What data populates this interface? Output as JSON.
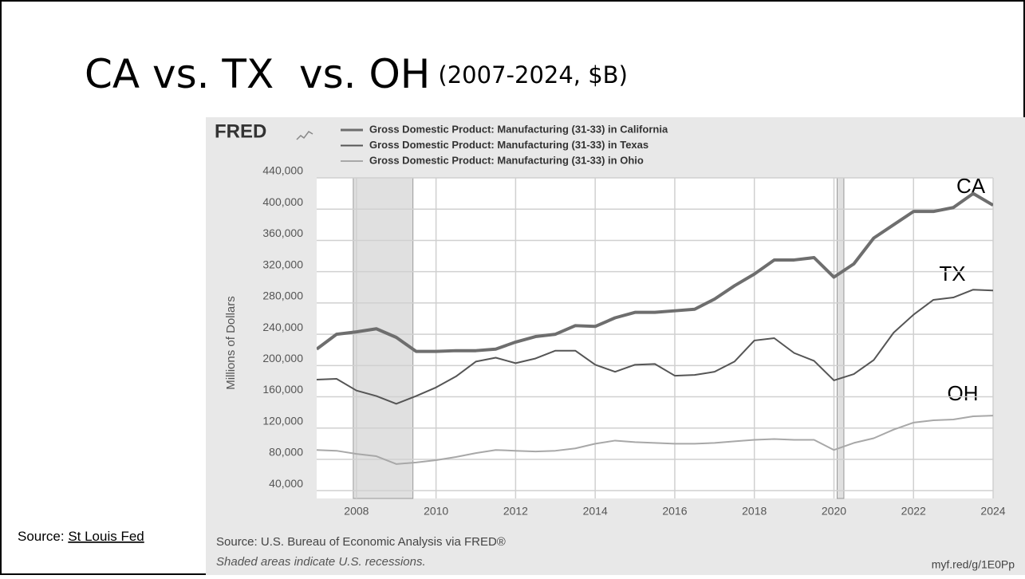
{
  "slide": {
    "title": "CA vs. TX  vs. OH",
    "title_note": "(2007-2024, $B)",
    "source_prefix": "Source: ",
    "source_link": "St Louis Fed"
  },
  "chart_data": {
    "type": "line",
    "logo": "FRED",
    "y_label": "Millions of Dollars",
    "annotations": [
      "CA",
      "TX",
      "OH"
    ],
    "source": "Source: U.S. Bureau of Economic Analysis via FRED®",
    "note": "Shaded areas indicate U.S. recessions.",
    "link": "myf.red/g/1E0Pp",
    "x": [
      2007,
      2007.5,
      2008,
      2008.5,
      2009,
      2009.5,
      2010,
      2010.5,
      2011,
      2011.5,
      2012,
      2012.5,
      2013,
      2013.5,
      2014,
      2014.5,
      2015,
      2015.5,
      2016,
      2016.5,
      2017,
      2017.5,
      2018,
      2018.5,
      2019,
      2019.5,
      2020,
      2020.5,
      2021,
      2021.5,
      2022,
      2022.5,
      2023,
      2023.5,
      2024
    ],
    "series": [
      {
        "name": "Gross Domestic Product: Manufacturing (31-33) in California",
        "color": "#6e6e6e",
        "width": 4,
        "values": [
          221000,
          240000,
          243000,
          247000,
          236000,
          218000,
          218000,
          219000,
          219000,
          221000,
          230000,
          237000,
          240000,
          251000,
          250000,
          261000,
          268000,
          268000,
          270000,
          272000,
          285000,
          302000,
          317000,
          335000,
          335000,
          338000,
          313000,
          330000,
          363000,
          380000,
          397000,
          397000,
          402000,
          420000,
          405000
        ]
      },
      {
        "name": "Gross Domestic Product: Manufacturing (31-33) in Texas",
        "color": "#555555",
        "width": 2,
        "values": [
          182000,
          183000,
          168000,
          161000,
          151000,
          161000,
          172000,
          186000,
          205000,
          210000,
          203000,
          209000,
          219000,
          219000,
          201000,
          192000,
          201000,
          202000,
          187000,
          188000,
          192000,
          205000,
          232000,
          235000,
          216000,
          206000,
          181000,
          189000,
          207000,
          242000,
          265000,
          284000,
          287000,
          297000,
          296000
        ]
      },
      {
        "name": "Gross Domestic Product: Manufacturing (31-33) in Ohio",
        "color": "#a8a8a8",
        "width": 2,
        "values": [
          92000,
          91000,
          87000,
          84000,
          74000,
          76000,
          79000,
          83000,
          88000,
          92000,
          91000,
          90000,
          91000,
          94000,
          100000,
          104000,
          102000,
          101000,
          100000,
          100000,
          101000,
          103000,
          105000,
          106000,
          105000,
          105000,
          92000,
          101000,
          107000,
          118000,
          127000,
          130000,
          131000,
          135000,
          136000
        ]
      }
    ],
    "recessions": [
      [
        2007.92,
        2009.42
      ],
      [
        2020.08,
        2020.25
      ]
    ],
    "xlim": [
      2007,
      2024
    ],
    "xticks": [
      2008,
      2010,
      2012,
      2014,
      2016,
      2018,
      2020,
      2022,
      2024
    ],
    "ylim": [
      30000,
      440000
    ],
    "yticks": [
      {
        "value": 40000,
        "label": "40,000"
      },
      {
        "value": 80000,
        "label": "80,000"
      },
      {
        "value": 120000,
        "label": "120,000"
      },
      {
        "value": 160000,
        "label": "160,000"
      },
      {
        "value": 200000,
        "label": "200,000"
      },
      {
        "value": 240000,
        "label": "240,000"
      },
      {
        "value": 280000,
        "label": "280,000"
      },
      {
        "value": 320000,
        "label": "320,000"
      },
      {
        "value": 360000,
        "label": "360,000"
      },
      {
        "value": 400000,
        "label": "400,000"
      },
      {
        "value": 440000,
        "label": "440,000"
      }
    ],
    "grid": true
  }
}
